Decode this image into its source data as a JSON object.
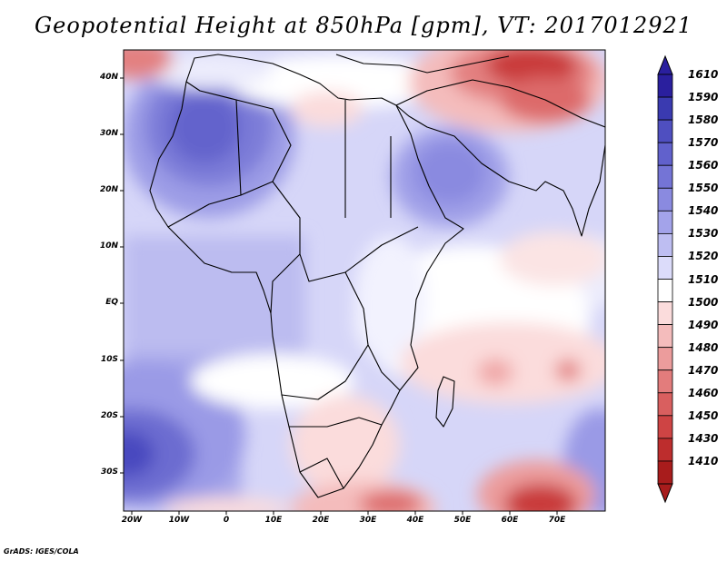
{
  "title": "Geopotential Height at 850hPa [gpm], VT: 2017012921",
  "credit": "GrADS: IGES/COLA",
  "map": {
    "lat_labels": [
      "40N",
      "30N",
      "20N",
      "10N",
      "EQ",
      "10S",
      "20S",
      "30S"
    ],
    "lon_labels": [
      "20W",
      "10W",
      "0",
      "10E",
      "20E",
      "30E",
      "40E",
      "50E",
      "60E",
      "70E"
    ]
  },
  "legend": {
    "levels": [
      "1610",
      "1590",
      "1580",
      "1570",
      "1560",
      "1550",
      "1540",
      "1530",
      "1520",
      "1510",
      "1500",
      "1490",
      "1480",
      "1470",
      "1460",
      "1450",
      "1430",
      "1410"
    ],
    "colors": [
      "#2a1f9e",
      "#3a3ab0",
      "#4f4fc0",
      "#6161cc",
      "#7474d6",
      "#8a8ae0",
      "#a3a3ea",
      "#bebef2",
      "#dcdcfa",
      "#ffffff",
      "#fbdcdc",
      "#f4bcbc",
      "#ec9c9c",
      "#e37c7c",
      "#d95f5f",
      "#ce4444",
      "#bd2d2d",
      "#a81c1c"
    ]
  }
}
